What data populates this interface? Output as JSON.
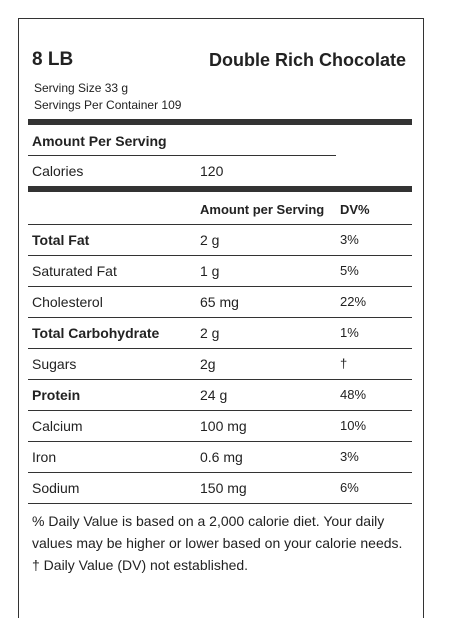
{
  "header": {
    "size": "8 LB",
    "flavor": "Double Rich Chocolate",
    "serving_size": "Serving Size 33 g",
    "servings_per_container": "Servings Per Container 109"
  },
  "amount_per_serving": "Amount Per Serving",
  "calories": {
    "label": "Calories",
    "value": "120"
  },
  "table": {
    "columns": [
      "Amount per Serving",
      "DV%"
    ],
    "rows": [
      {
        "label": "Total Fat",
        "amount": "2 g",
        "dv": "3%",
        "bold": true
      },
      {
        "label": "Saturated Fat",
        "amount": "1 g",
        "dv": "5%",
        "bold": false
      },
      {
        "label": "Cholesterol",
        "amount": "65 mg",
        "dv": "22%",
        "bold": false
      },
      {
        "label": "Total Carbohydrate",
        "amount": "2 g",
        "dv": "1%",
        "bold": true
      },
      {
        "label": "Sugars",
        "amount": "2g",
        "dv": "†",
        "bold": false
      },
      {
        "label": "Protein",
        "amount": "24 g",
        "dv": "48%",
        "bold": true
      },
      {
        "label": "Calcium",
        "amount": "100 mg",
        "dv": "10%",
        "bold": false
      },
      {
        "label": "Iron",
        "amount": "0.6 mg",
        "dv": "3%",
        "bold": false
      },
      {
        "label": "Sodium",
        "amount": "150 mg",
        "dv": "6%",
        "bold": false
      }
    ]
  },
  "footnote": [
    "% Daily Value is based on a 2,000 calorie diet. Your daily",
    "values may be higher or lower based on your calorie needs.",
    "† Daily Value (DV) not established."
  ]
}
